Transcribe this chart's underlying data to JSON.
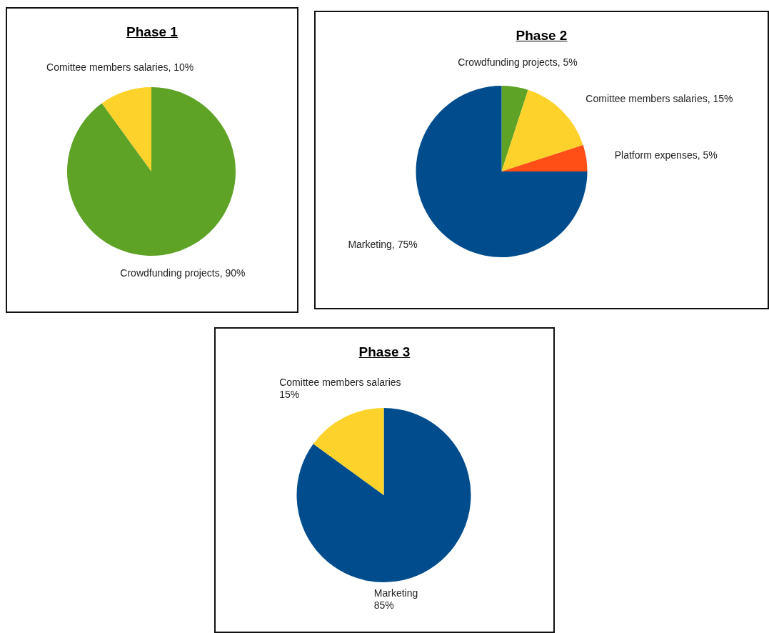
{
  "chart_data": [
    {
      "type": "pie",
      "title": "Phase 1",
      "categories": [
        "Crowdfunding projects",
        "Comittee members salaries"
      ],
      "values": [
        90,
        10
      ],
      "colors": [
        "#5ea226",
        "#fdd22a"
      ],
      "value_labels": [
        "90%",
        "10%"
      ],
      "legend": false
    },
    {
      "type": "pie",
      "title": "Phase 2",
      "categories": [
        "Crowdfunding projects",
        "Comittee members salaries",
        "Platform expenses",
        "Marketing"
      ],
      "values": [
        5,
        15,
        5,
        75
      ],
      "colors": [
        "#5ea226",
        "#fdd22a",
        "#ff4e16",
        "#004c8c"
      ],
      "value_labels": [
        "5%",
        "15%",
        "5%",
        "75%"
      ],
      "legend": false
    },
    {
      "type": "pie",
      "title": "Phase 3",
      "categories": [
        "Marketing",
        "Comittee members salaries"
      ],
      "values": [
        85,
        15
      ],
      "colors": [
        "#004c8c",
        "#fdd22a"
      ],
      "value_labels": [
        "85%",
        "15%"
      ],
      "legend": false
    }
  ]
}
